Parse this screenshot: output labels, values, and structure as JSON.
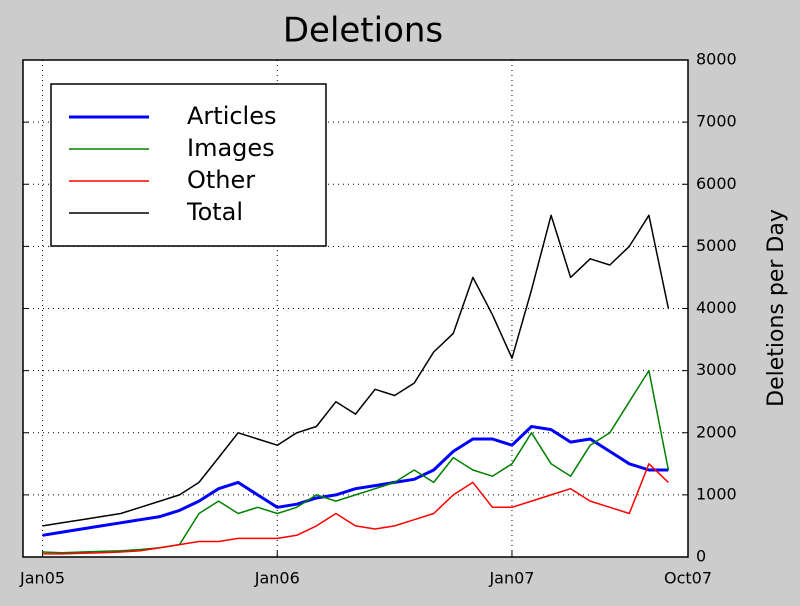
{
  "chart_data": {
    "type": "line",
    "title": "Deletions",
    "y_label": "Deletions per Day",
    "x": [
      "2005-01",
      "2005-02",
      "2005-03",
      "2005-04",
      "2005-05",
      "2005-06",
      "2005-07",
      "2005-08",
      "2005-09",
      "2005-10",
      "2005-11",
      "2005-12",
      "2006-01",
      "2006-02",
      "2006-03",
      "2006-04",
      "2006-05",
      "2006-06",
      "2006-07",
      "2006-08",
      "2006-09",
      "2006-10",
      "2006-11",
      "2006-12",
      "2007-01",
      "2007-02",
      "2007-03",
      "2007-04",
      "2007-05",
      "2007-06",
      "2007-07",
      "2007-08",
      "2007-09"
    ],
    "series": [
      {
        "name": "Articles",
        "color": "#0000ff",
        "values": [
          350,
          400,
          450,
          500,
          550,
          600,
          650,
          750,
          900,
          1100,
          1200,
          1000,
          800,
          850,
          950,
          1000,
          1100,
          1150,
          1200,
          1250,
          1400,
          1700,
          1900,
          1900,
          1800,
          2100,
          2050,
          1850,
          1900,
          1700,
          1500,
          1400,
          1400
        ]
      },
      {
        "name": "Images",
        "color": "#008000",
        "values": [
          80,
          70,
          80,
          90,
          100,
          120,
          150,
          200,
          700,
          900,
          700,
          800,
          700,
          800,
          1000,
          900,
          1000,
          1100,
          1200,
          1400,
          1200,
          1600,
          1400,
          1300,
          1500,
          2000,
          1500,
          1300,
          1800,
          2000,
          2500,
          3000,
          1400
        ]
      },
      {
        "name": "Other",
        "color": "#ff0000",
        "values": [
          50,
          50,
          60,
          70,
          80,
          100,
          150,
          200,
          250,
          250,
          300,
          300,
          300,
          350,
          500,
          700,
          500,
          450,
          500,
          600,
          700,
          1000,
          1200,
          800,
          800,
          900,
          1000,
          1100,
          900,
          800,
          700,
          1500,
          1200
        ]
      },
      {
        "name": "Total",
        "color": "#000000",
        "values": [
          500,
          550,
          600,
          650,
          700,
          800,
          900,
          1000,
          1200,
          1600,
          2000,
          1900,
          1800,
          2000,
          2100,
          2500,
          2300,
          2700,
          2600,
          2800,
          3300,
          3600,
          4500,
          3900,
          3200,
          4300,
          5500,
          4500,
          4800,
          4700,
          5000,
          5500,
          4000
        ]
      }
    ],
    "xlim": [
      "2004-12",
      "2007-10"
    ],
    "xticks": [
      {
        "value": "2005-01",
        "label": "Jan05"
      },
      {
        "value": "2006-01",
        "label": "Jan06"
      },
      {
        "value": "2007-01",
        "label": "Jan07"
      },
      {
        "value": "2007-10",
        "label": "Oct07"
      }
    ],
    "ylim": [
      0,
      8000
    ],
    "yticks": [
      0,
      1000,
      2000,
      3000,
      4000,
      5000,
      6000,
      7000,
      8000
    ],
    "y_axis_side": "right",
    "grid": true,
    "legend": "upper left"
  }
}
